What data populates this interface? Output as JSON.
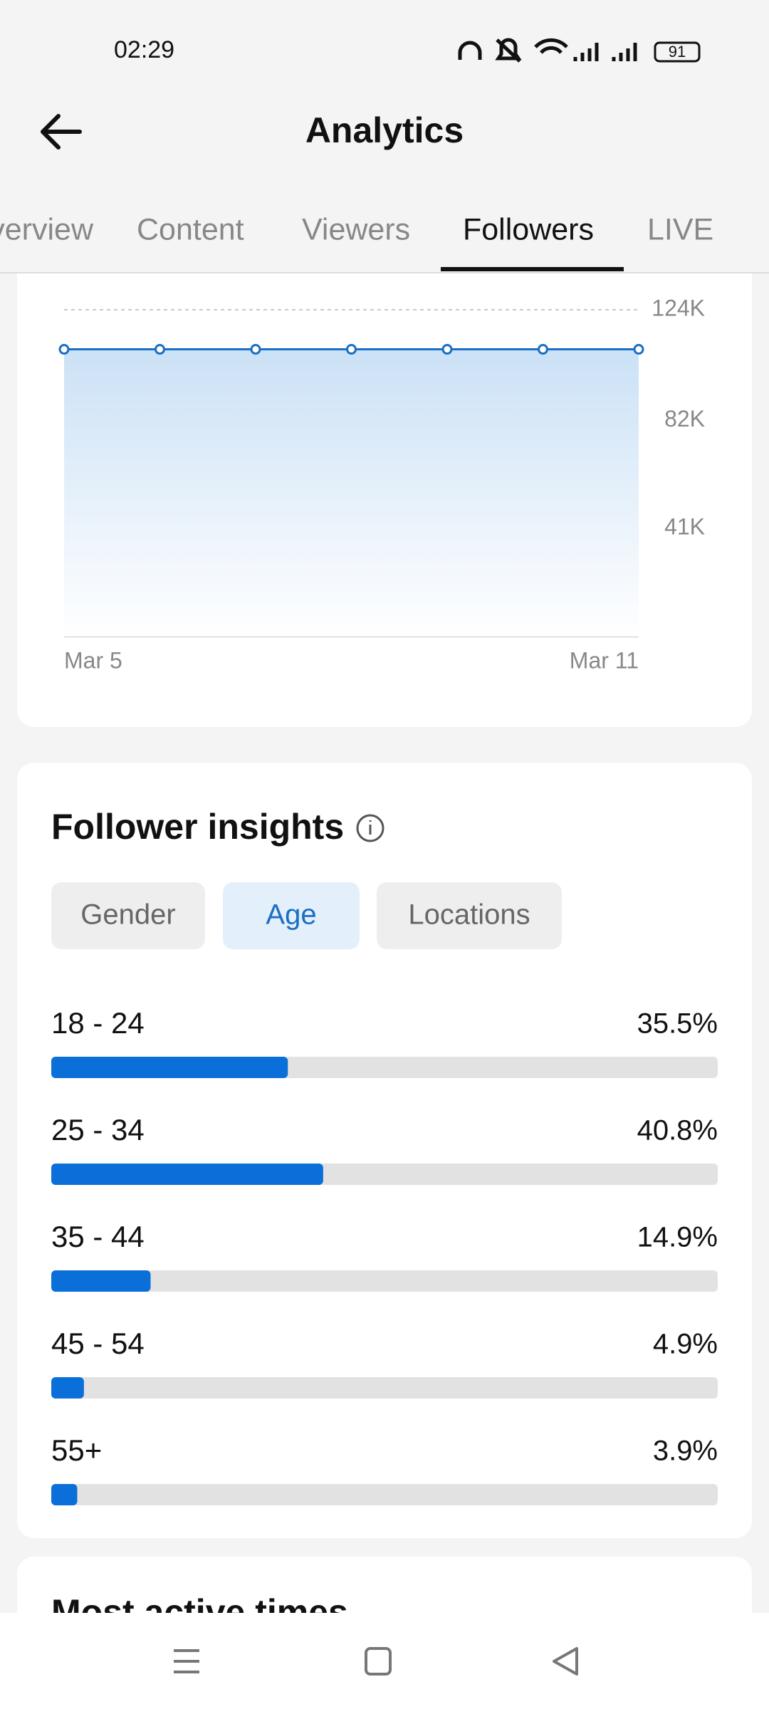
{
  "status_bar": {
    "time": "02:29",
    "battery": "91"
  },
  "header": {
    "title": "Analytics"
  },
  "tabs": [
    "Overview",
    "Content",
    "Viewers",
    "Followers",
    "LIVE"
  ],
  "insights": {
    "title": "Follower insights",
    "filters": [
      "Gender",
      "Age",
      "Locations"
    ]
  },
  "next_section": {
    "title": "Most active times"
  },
  "chart_data": [
    {
      "type": "area",
      "categories": [
        "Mar 5",
        null,
        null,
        null,
        null,
        null,
        "Mar 11"
      ],
      "values": [
        109000,
        109000,
        109000,
        109000,
        109000,
        109000,
        109000
      ],
      "color": "#1a6fc4",
      "ylim": [
        0,
        124000
      ],
      "yticks": [
        {
          "value": 41000,
          "label": "41K"
        },
        {
          "value": 82000,
          "label": "82K"
        },
        {
          "value": 124000,
          "label": "124K"
        }
      ],
      "grid": true
    },
    {
      "type": "hbar",
      "categories": [
        "18 - 24",
        "25 - 34",
        "35 - 44",
        "45 - 54",
        "55+"
      ],
      "values": [
        35.5,
        40.8,
        14.9,
        4.9,
        3.9
      ],
      "value_labels": [
        "35.5%",
        "40.8%",
        "14.9%",
        "4.9%",
        "3.9%"
      ],
      "color": "#0a6fd8",
      "xlim": [
        0,
        100
      ]
    }
  ]
}
